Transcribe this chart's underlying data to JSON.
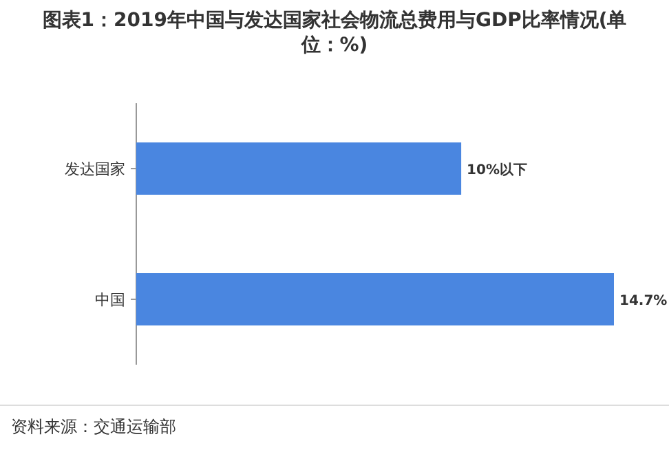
{
  "chart_data": {
    "type": "bar",
    "orientation": "horizontal",
    "title": "图表1：2019年中国与发达国家社会物流总费用与GDP比率情况(单位：%)",
    "categories": [
      "发达国家",
      "中国"
    ],
    "values": [
      10,
      14.7
    ],
    "value_labels": [
      "10%以下",
      "14.7%"
    ],
    "color": "#4a86e0",
    "annotations": [
      "资料来源：交通运输部"
    ]
  }
}
